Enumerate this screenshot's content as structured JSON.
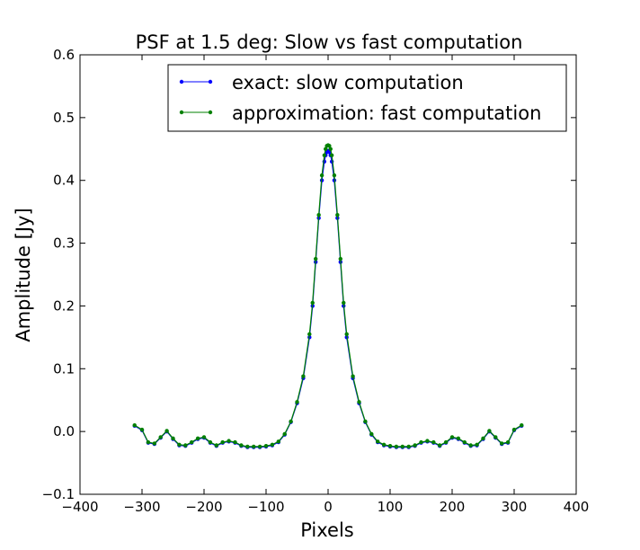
{
  "chart_data": {
    "type": "line",
    "title": "PSF at 1.5 deg: Slow vs fast computation",
    "xlabel": "Pixels",
    "ylabel": "Amplitude [Jy]",
    "xlim": [
      -400,
      400
    ],
    "ylim": [
      -0.1,
      0.6
    ],
    "xticks": [
      -400,
      -300,
      -200,
      -100,
      0,
      100,
      200,
      300,
      400
    ],
    "xtick_labels": [
      "−400",
      "−300",
      "−200",
      "−100",
      "0",
      "100",
      "200",
      "300",
      "400"
    ],
    "yticks": [
      -0.1,
      0.0,
      0.1,
      0.2,
      0.3,
      0.4,
      0.5,
      0.6
    ],
    "ytick_labels": [
      "−0.1",
      "0.0",
      "0.1",
      "0.2",
      "0.3",
      "0.4",
      "0.5",
      "0.6"
    ],
    "grid": false,
    "legend_position": "top-right",
    "series": [
      {
        "name": "exact: slow computation",
        "color": "#0000ff",
        "marker": "dot",
        "x": [
          -312,
          -300,
          -290,
          -280,
          -270,
          -260,
          -250,
          -240,
          -230,
          -220,
          -210,
          -200,
          -190,
          -180,
          -170,
          -160,
          -150,
          -140,
          -130,
          -120,
          -110,
          -100,
          -90,
          -80,
          -70,
          -60,
          -50,
          -40,
          -30,
          -25,
          -20,
          -15,
          -10,
          -6,
          -4,
          -2,
          0,
          2,
          4,
          6,
          10,
          15,
          20,
          25,
          30,
          40,
          50,
          60,
          70,
          80,
          90,
          100,
          110,
          120,
          130,
          140,
          150,
          160,
          170,
          180,
          190,
          200,
          210,
          220,
          230,
          240,
          250,
          260,
          270,
          280,
          290,
          300,
          312
        ],
        "y": [
          0.009,
          0.002,
          -0.018,
          -0.02,
          -0.01,
          0.0,
          -0.012,
          -0.022,
          -0.023,
          -0.018,
          -0.012,
          -0.01,
          -0.018,
          -0.023,
          -0.018,
          -0.016,
          -0.018,
          -0.023,
          -0.025,
          -0.025,
          -0.025,
          -0.024,
          -0.022,
          -0.017,
          -0.005,
          0.015,
          0.045,
          0.085,
          0.15,
          0.2,
          0.27,
          0.34,
          0.4,
          0.43,
          0.44,
          0.445,
          0.447,
          0.445,
          0.44,
          0.43,
          0.4,
          0.34,
          0.27,
          0.2,
          0.15,
          0.085,
          0.045,
          0.015,
          -0.005,
          -0.017,
          -0.022,
          -0.024,
          -0.025,
          -0.025,
          -0.025,
          -0.023,
          -0.018,
          -0.016,
          -0.018,
          -0.023,
          -0.018,
          -0.01,
          -0.012,
          -0.018,
          -0.023,
          -0.022,
          -0.012,
          0.0,
          -0.01,
          -0.02,
          -0.018,
          0.002,
          0.009
        ]
      },
      {
        "name": "approximation: fast computation",
        "color": "#008000",
        "marker": "dot",
        "x": [
          -312,
          -300,
          -290,
          -280,
          -270,
          -260,
          -250,
          -240,
          -230,
          -220,
          -210,
          -200,
          -190,
          -180,
          -170,
          -160,
          -150,
          -140,
          -130,
          -120,
          -110,
          -100,
          -90,
          -80,
          -70,
          -60,
          -50,
          -40,
          -30,
          -25,
          -20,
          -15,
          -10,
          -6,
          -4,
          -2,
          0,
          2,
          4,
          6,
          10,
          15,
          20,
          25,
          30,
          40,
          50,
          60,
          70,
          80,
          90,
          100,
          110,
          120,
          130,
          140,
          150,
          160,
          170,
          180,
          190,
          200,
          210,
          220,
          230,
          240,
          250,
          260,
          270,
          280,
          290,
          300,
          312
        ],
        "y": [
          0.01,
          0.003,
          -0.017,
          -0.019,
          -0.009,
          0.001,
          -0.011,
          -0.021,
          -0.022,
          -0.017,
          -0.011,
          -0.009,
          -0.017,
          -0.022,
          -0.017,
          -0.015,
          -0.017,
          -0.022,
          -0.024,
          -0.024,
          -0.024,
          -0.023,
          -0.021,
          -0.016,
          -0.004,
          0.016,
          0.047,
          0.088,
          0.155,
          0.205,
          0.275,
          0.345,
          0.408,
          0.44,
          0.45,
          0.455,
          0.456,
          0.455,
          0.45,
          0.44,
          0.408,
          0.345,
          0.275,
          0.205,
          0.155,
          0.088,
          0.047,
          0.016,
          -0.004,
          -0.016,
          -0.021,
          -0.023,
          -0.024,
          -0.024,
          -0.024,
          -0.022,
          -0.017,
          -0.015,
          -0.017,
          -0.022,
          -0.017,
          -0.009,
          -0.011,
          -0.017,
          -0.022,
          -0.021,
          -0.011,
          0.001,
          -0.009,
          -0.019,
          -0.017,
          0.003,
          0.01
        ]
      }
    ]
  }
}
